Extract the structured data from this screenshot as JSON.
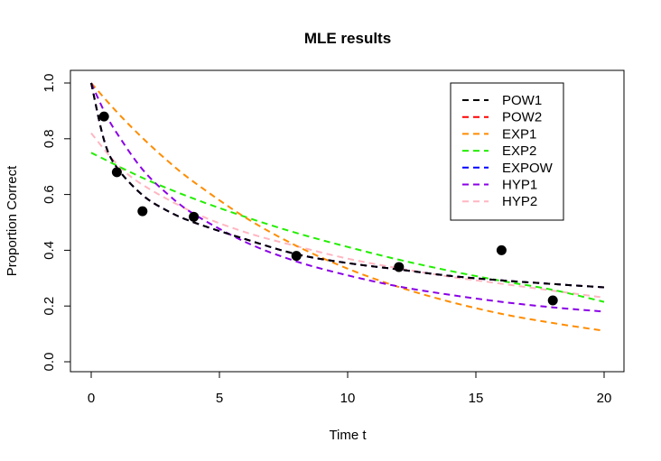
{
  "chart_data": {
    "type": "line",
    "title": "MLE results",
    "xlabel": "Time t",
    "ylabel": "Proportion Correct",
    "xlim": [
      0,
      20
    ],
    "ylim": [
      0,
      1
    ],
    "x_ticks": [
      "0",
      "5",
      "10",
      "15",
      "20"
    ],
    "y_ticks": [
      "0.0",
      "0.2",
      "0.4",
      "0.6",
      "0.8",
      "1.0"
    ],
    "grid": false,
    "legend_position": "top-right",
    "observed": {
      "x": [
        0.5,
        1,
        2,
        4,
        8,
        12,
        16,
        18
      ],
      "y": [
        0.88,
        0.68,
        0.54,
        0.52,
        0.38,
        0.34,
        0.4,
        0.22
      ]
    },
    "series": [
      {
        "name": "POW1",
        "color": "#000000",
        "x": [
          0,
          0.5,
          1,
          2,
          3,
          4,
          6,
          8,
          10,
          12,
          14,
          16,
          18,
          20
        ],
        "y": [
          1.0,
          0.795,
          0.697,
          0.598,
          0.54,
          0.5,
          0.44,
          0.386,
          0.354,
          0.331,
          0.308,
          0.292,
          0.279,
          0.267
        ]
      },
      {
        "name": "POW2",
        "color": "#ff0000",
        "x": [
          0,
          0.5,
          1,
          2,
          3,
          4,
          6,
          8,
          10,
          12,
          14,
          16,
          18,
          20
        ],
        "y": [
          1.0,
          0.795,
          0.697,
          0.598,
          0.54,
          0.5,
          0.44,
          0.386,
          0.354,
          0.331,
          0.308,
          0.292,
          0.279,
          0.267
        ]
      },
      {
        "name": "EXP1",
        "color": "#ff8c00",
        "x": [
          0,
          1,
          2,
          3,
          4,
          6,
          8,
          10,
          12,
          14,
          16,
          18,
          20
        ],
        "y": [
          1.0,
          0.896,
          0.803,
          0.719,
          0.645,
          0.518,
          0.416,
          0.334,
          0.268,
          0.215,
          0.172,
          0.139,
          0.111
        ]
      },
      {
        "name": "EXP2",
        "color": "#22ee00",
        "x": [
          0,
          2,
          4,
          6,
          8,
          10,
          12,
          14,
          16,
          18,
          20
        ],
        "y": [
          0.75,
          0.66,
          0.585,
          0.52,
          0.462,
          0.412,
          0.366,
          0.326,
          0.29,
          0.258,
          0.215
        ]
      },
      {
        "name": "EXPOW",
        "color": "#0000ff",
        "x": [
          0,
          0.5,
          1,
          2,
          3,
          4,
          6,
          8,
          10,
          12,
          14,
          16,
          18,
          20
        ],
        "y": [
          1.0,
          0.795,
          0.697,
          0.598,
          0.54,
          0.5,
          0.44,
          0.386,
          0.354,
          0.331,
          0.308,
          0.292,
          0.279,
          0.267
        ]
      },
      {
        "name": "HYP1",
        "color": "#8a00e6",
        "x": [
          0,
          0.5,
          1,
          2,
          3,
          4,
          6,
          8,
          10,
          12,
          14,
          16,
          18,
          20
        ],
        "y": [
          1.0,
          0.9,
          0.82,
          0.69,
          0.6,
          0.53,
          0.43,
          0.36,
          0.31,
          0.27,
          0.24,
          0.215,
          0.195,
          0.18
        ]
      },
      {
        "name": "HYP2",
        "color": "#ffb6c1",
        "x": [
          0,
          1,
          2,
          4,
          6,
          8,
          10,
          12,
          14,
          16,
          18,
          20
        ],
        "y": [
          0.82,
          0.71,
          0.635,
          0.535,
          0.465,
          0.415,
          0.37,
          0.335,
          0.305,
          0.28,
          0.255,
          0.23
        ]
      }
    ]
  }
}
